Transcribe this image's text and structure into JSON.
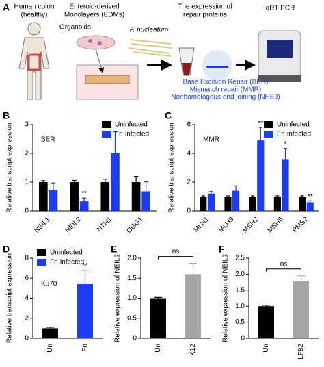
{
  "panel_a": {
    "panel": "A",
    "colon_label": [
      "Human colon",
      "(healthy)"
    ],
    "edm_label": [
      "Enteroid-derived",
      "Monolayers (EDMs)"
    ],
    "organoids": "Organoids",
    "bacteria": "F. nucleatum",
    "expression_label": [
      "The expression of",
      "repair proteins"
    ],
    "assay": "qRT-PCR",
    "pathways": [
      "Base Excision Repair (BER)",
      "Mismatch repair (MMR)",
      "Nonhomologous end joining (NHEJ)"
    ]
  },
  "chart_data": [
    {
      "type": "bar",
      "panel": "B",
      "inset_label": "BER",
      "ylabel": "Relative transcript expression",
      "legend": "upper right",
      "grouped": true,
      "xtick_style": "slanted",
      "categories": [
        "NEIL1",
        "NEIL2",
        "NTH1",
        "OGG1"
      ],
      "series": [
        {
          "name": "Uninfected",
          "color": "#000000",
          "values": [
            1.0,
            1.0,
            1.0,
            1.0
          ],
          "errors": [
            0.05,
            0.06,
            0.1,
            0.2
          ]
        },
        {
          "name": "Fn-infected",
          "color": "#1a3cf5",
          "values": [
            0.72,
            0.33,
            2.0,
            0.68
          ],
          "errors": [
            0.25,
            0.12,
            0.75,
            0.33
          ],
          "labels": [
            null,
            "**",
            null,
            null
          ]
        }
      ],
      "ylim": [
        0,
        3
      ],
      "yticks": [
        0,
        1,
        2,
        3
      ]
    },
    {
      "type": "bar",
      "panel": "C",
      "inset_label": "MMR",
      "ylabel": "Relative transcript expression",
      "legend": "upper right",
      "grouped": true,
      "xtick_style": "slanted",
      "categories": [
        "MLH1",
        "MLH3",
        "MSH2",
        "MSH6",
        "PMS2"
      ],
      "series": [
        {
          "name": "Uninfected",
          "color": "#000000",
          "values": [
            1.0,
            1.0,
            1.0,
            1.0,
            1.0
          ],
          "errors": [
            0.05,
            0.05,
            0.05,
            0.05,
            0.05
          ]
        },
        {
          "name": "Fn-infected",
          "color": "#1a3cf5",
          "values": [
            1.2,
            1.4,
            4.9,
            3.6,
            0.6
          ],
          "errors": [
            0.15,
            0.35,
            0.9,
            0.75,
            0.1
          ],
          "labels": [
            null,
            null,
            "**",
            "*",
            "**"
          ]
        }
      ],
      "ylim": [
        0,
        6
      ],
      "yticks": [
        0,
        2,
        4,
        6
      ]
    },
    {
      "type": "bar",
      "panel": "D",
      "inset_label": "Ku70",
      "ylabel": "Relative transcript expression",
      "legend": "upper left",
      "grouped": false,
      "xtick_style": "vertical",
      "categories": [
        "Un",
        "Fn"
      ],
      "series": [
        {
          "name": "Uninfected",
          "color": "#000000",
          "values": [
            1.0,
            null
          ],
          "errors": [
            0.1,
            null
          ]
        },
        {
          "name": "Fn-infected",
          "color": "#1a3cf5",
          "values": [
            null,
            5.4
          ],
          "errors": [
            null,
            1.4
          ],
          "labels": [
            null,
            "**"
          ]
        }
      ],
      "ylim": [
        0,
        8
      ],
      "yticks": [
        0,
        2,
        4,
        6,
        8
      ]
    },
    {
      "type": "bar",
      "panel": "E",
      "ylabel": "Relative expression of NEIL2",
      "grouped": false,
      "xtick_style": "vertical",
      "comparison": "ns",
      "categories": [
        "Un",
        "K12"
      ],
      "series": [
        {
          "colors": [
            "#000000",
            "#a6a6a6"
          ],
          "values": [
            1.0,
            1.6
          ],
          "errors": [
            0.02,
            0.27
          ]
        }
      ],
      "ylim": [
        0,
        2.0
      ],
      "yticks": [
        0,
        0.5,
        {
          "value": 1.0,
          "label": "1.0"
        },
        1.5,
        {
          "value": 2.0,
          "label": "2.0"
        }
      ]
    },
    {
      "type": "bar",
      "panel": "F",
      "ylabel": "Relative expression of NEIL2",
      "grouped": false,
      "xtick_style": "vertical",
      "comparison": "ns",
      "categories": [
        "Un",
        "LF82"
      ],
      "series": [
        {
          "colors": [
            "#000000",
            "#a6a6a6"
          ],
          "values": [
            1.0,
            1.78
          ],
          "errors": [
            0.03,
            0.17
          ]
        }
      ],
      "ylim": [
        0,
        2.5
      ],
      "yticks": [
        0,
        0.5,
        {
          "value": 1.0,
          "label": "1.0"
        },
        1.5,
        {
          "value": 2.0,
          "label": "2.0"
        },
        2.5
      ]
    }
  ]
}
